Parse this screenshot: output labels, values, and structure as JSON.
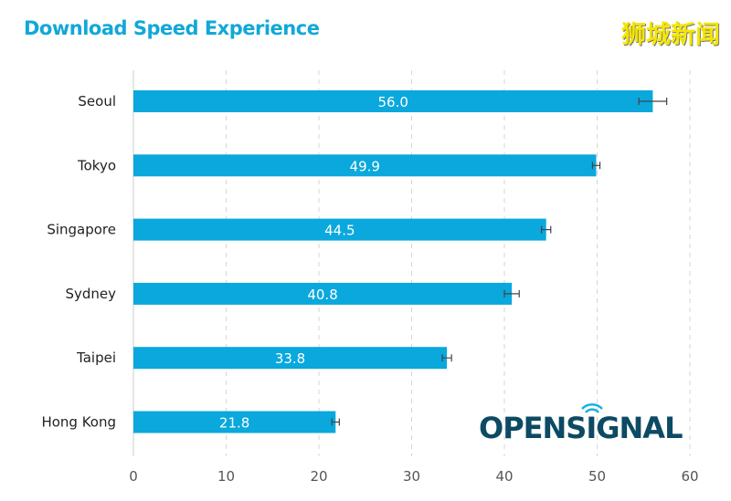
{
  "chart_data": {
    "type": "bar",
    "orientation": "horizontal",
    "title": "Download Speed Experience",
    "categories": [
      "Seoul",
      "Tokyo",
      "Singapore",
      "Sydney",
      "Taipei",
      "Hong Kong"
    ],
    "values": [
      56.0,
      49.9,
      44.5,
      40.8,
      33.8,
      21.8
    ],
    "value_labels": [
      "56.0",
      "49.9",
      "44.5",
      "40.8",
      "33.8",
      "21.8"
    ],
    "error": [
      1.5,
      0.4,
      0.5,
      0.8,
      0.5,
      0.4
    ],
    "xlim": [
      0,
      60
    ],
    "xticks": [
      "0",
      "10",
      "20",
      "30",
      "40",
      "50",
      "60"
    ],
    "grid": true,
    "bar_color": "#0aa8dc"
  },
  "watermark": "狮城新闻",
  "logo": "OPENSIGNAL"
}
